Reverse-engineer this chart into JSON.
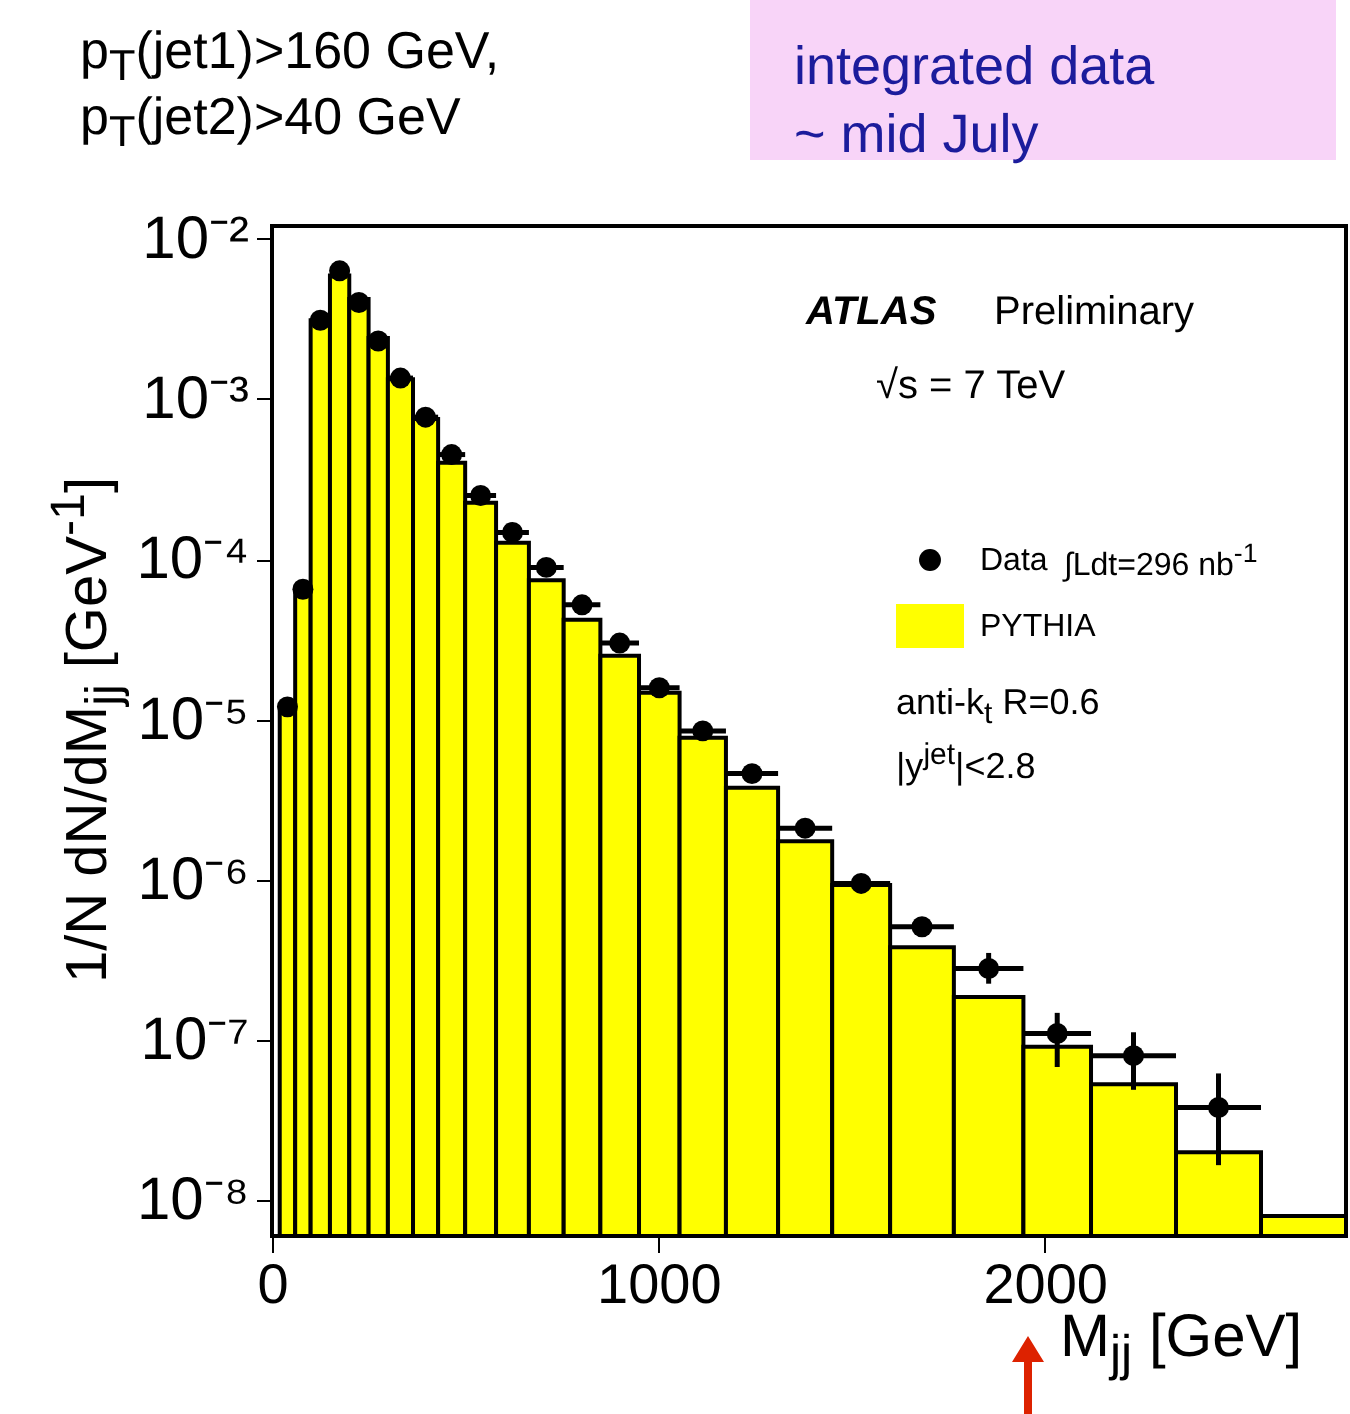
{
  "chart_data": {
    "type": "histogram",
    "xlabel": "M$_{jj}$ [GeV]",
    "ylabel": "1/N dN/dM$_{jj}$ [GeV$^{-1}$]",
    "xlim": [
      0,
      2780
    ],
    "xticks": [
      0,
      1000,
      2000
    ],
    "ylim": [
      6e-09,
      0.012
    ],
    "log": true,
    "yticks": [
      {
        "value": 1e-08,
        "label": "10⁻⁸"
      },
      {
        "value": 1e-07,
        "label": "10⁻⁷"
      },
      {
        "value": 1e-06,
        "label": "10⁻⁶"
      },
      {
        "value": 1e-05,
        "label": "10⁻⁵"
      },
      {
        "value": 0.0001,
        "label": "10⁻⁴"
      },
      {
        "value": 0.001,
        "label": "10⁻³"
      },
      {
        "value": 0.01,
        "label": "10⁻²"
      }
    ],
    "grid": false,
    "legend": "right",
    "series": [
      {
        "type": "scatter",
        "name": "Data",
        "color": "#000000",
        "marker": "circle",
        "x": [
          40,
          80,
          125,
          175,
          225,
          275,
          332.5,
          397.5,
          465,
          540,
          622.5,
          710,
          802.5,
          900,
          1002.5,
          1115,
          1242.5,
          1380,
          1525,
          1682.5,
          1855,
          2032.5,
          2230,
          2450
        ],
        "values": [
          1.2e-05,
          6.5e-05,
          0.0031,
          0.0063,
          0.004,
          0.0023,
          0.00135,
          0.00077,
          0.00045,
          0.00025,
          0.000147,
          8.9e-05,
          5.2e-05,
          3e-05,
          1.58e-05,
          8.5e-06,
          4.6e-06,
          2.1e-06,
          9.5e-07,
          5.1e-07,
          2.8e-07,
          1.1e-07,
          8e-08,
          3.8e-08
        ],
        "xerrors": [
          20,
          20,
          25,
          25,
          25,
          25,
          32.5,
          32.5,
          35,
          40,
          42.5,
          45,
          47.5,
          50,
          52.5,
          60,
          67.5,
          70,
          75,
          82.5,
          90,
          87.5,
          110,
          110
        ],
        "errors": [
          null,
          null,
          null,
          null,
          null,
          null,
          null,
          null,
          null,
          null,
          null,
          null,
          null,
          null,
          null,
          null,
          null,
          null,
          null,
          [
            4.6e-07,
            5.6e-07
          ],
          [
            2.25e-07,
            3.5e-07
          ],
          [
            6.8e-08,
            1.48e-07
          ],
          [
            4.9e-08,
            1.12e-07
          ],
          [
            1.66e-08,
            6.2e-08
          ]
        ]
      },
      {
        "type": "histogram",
        "name": "PYTHIA",
        "color": "#ffff00",
        "bins": [
          20,
          60,
          100,
          150,
          200,
          250,
          300,
          365,
          430,
          500,
          580,
          665,
          755,
          850,
          950,
          1055,
          1175,
          1310,
          1450,
          1600,
          1765,
          1945,
          2120,
          2340,
          2560,
          2780
        ],
        "values": [
          1.1e-05,
          6.2e-05,
          0.0031,
          0.0059,
          0.0042,
          0.0024,
          0.00133,
          0.00075,
          0.0004,
          0.000225,
          0.000127,
          7.4e-05,
          4.2e-05,
          2.5e-05,
          1.47e-05,
          7.7e-06,
          3.76e-06,
          1.74e-06,
          9.3e-07,
          3.8e-07,
          1.86e-07,
          9.1e-08,
          5.3e-08,
          2e-08,
          8e-09
        ]
      }
    ],
    "annotations": [
      "p$_{T}$(jet1)>160 GeV,",
      "p$_{T}$(jet2)>40 GeV",
      "integrated data",
      "~ mid July",
      "ATLAS",
      "Preliminary",
      "√s = 7 TeV",
      "∫Ldt=296 nb$^{-1}$",
      "anti-k$_{t}$ R=0.6",
      "|y$^{jet}$|<2.8"
    ]
  }
}
